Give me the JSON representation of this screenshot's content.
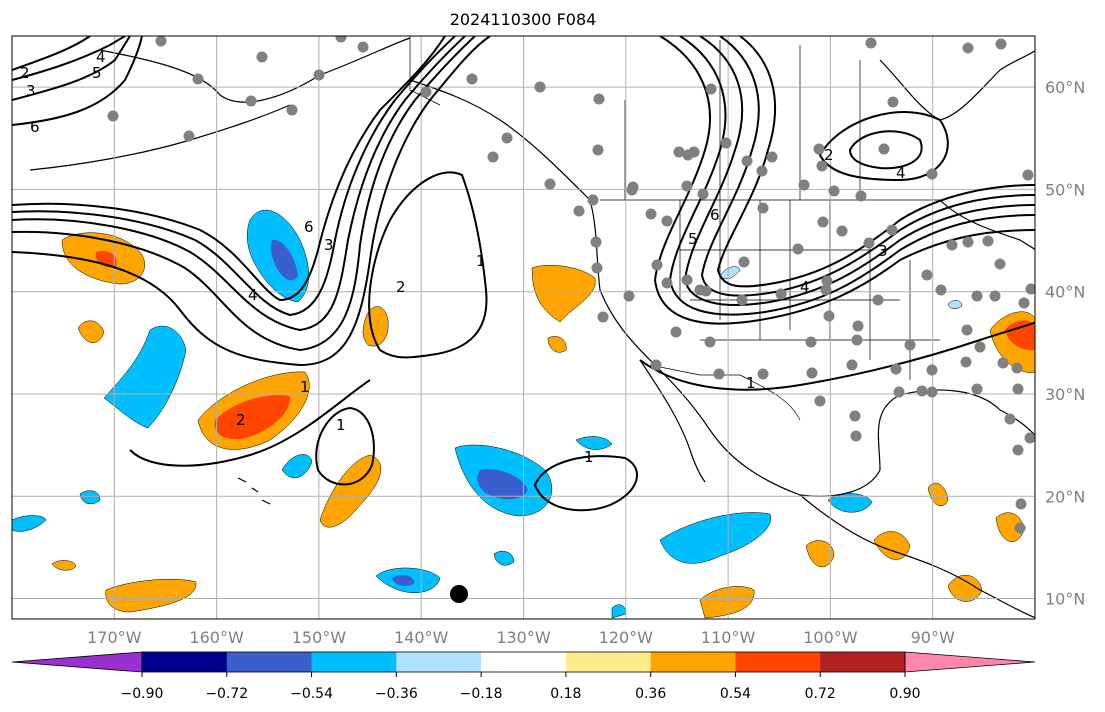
{
  "title": "2024110300 F084",
  "map": {
    "lon_range": [
      -180,
      -80
    ],
    "lat_range": [
      8,
      65
    ],
    "lon_ticks": [
      {
        "value": -170,
        "label": "170°W"
      },
      {
        "value": -160,
        "label": "160°W"
      },
      {
        "value": -150,
        "label": "150°W"
      },
      {
        "value": -140,
        "label": "140°W"
      },
      {
        "value": -130,
        "label": "130°W"
      },
      {
        "value": -120,
        "label": "120°W"
      },
      {
        "value": -110,
        "label": "110°W"
      },
      {
        "value": -100,
        "label": "100°W"
      },
      {
        "value": -90,
        "label": "90°W"
      }
    ],
    "lat_ticks": [
      {
        "value": 10,
        "label": "10°N"
      },
      {
        "value": 20,
        "label": "20°N"
      },
      {
        "value": 30,
        "label": "30°N"
      },
      {
        "value": 40,
        "label": "40°N"
      },
      {
        "value": 50,
        "label": "50°N"
      },
      {
        "value": 60,
        "label": "60°N"
      }
    ],
    "grid": true,
    "colors": {
      "land_outline": "#000000",
      "grid": "#b0b0b0",
      "contour": "#000000",
      "station": "#808080"
    },
    "contour_labels": [
      "1",
      "2",
      "3",
      "4",
      "5",
      "6"
    ]
  },
  "colorbar": {
    "colors": [
      "#9b30d0",
      "#00008b",
      "#3a5fcd",
      "#00bfff",
      "#b0e2ff",
      "#ffffff",
      "#ffec8b",
      "#ffa500",
      "#ff4500",
      "#b22222",
      "#ff88aa"
    ],
    "tick_labels": [
      "−0.90",
      "−0.72",
      "−0.54",
      "−0.36",
      "−0.18",
      "0.18",
      "0.36",
      "0.54",
      "0.72",
      "0.90"
    ],
    "extend": "both"
  }
}
